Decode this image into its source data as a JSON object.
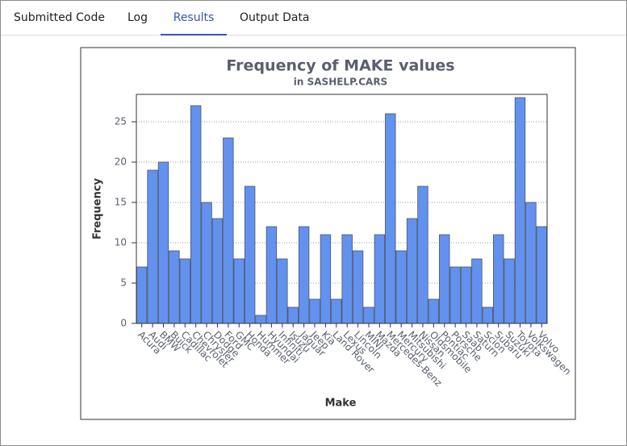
{
  "tabs": [
    "Submitted Code",
    "Log",
    "Results",
    "Output Data"
  ],
  "active_tab": 2,
  "chart_data": {
    "type": "bar",
    "title": "Frequency of MAKE values",
    "subtitle": "in SASHELP.CARS",
    "x_label": "Make",
    "y_label": "Frequency",
    "categories": [
      "Acura",
      "Audi",
      "BMW",
      "Buick",
      "Cadillac",
      "Chevrolet",
      "Chrysler",
      "Dodge",
      "Ford",
      "GMC",
      "Honda",
      "Hummer",
      "Hyundai",
      "Infiniti",
      "Isuzu",
      "Jaguar",
      "Jeep",
      "Kia",
      "Land Rover",
      "Lexus",
      "Lincoln",
      "MINI",
      "Mazda",
      "Mercedes-Benz",
      "Mercury",
      "Mitsubishi",
      "Nissan",
      "Oldsmobile",
      "Pontiac",
      "Porsche",
      "Saab",
      "Saturn",
      "Scion",
      "Subaru",
      "Suzuki",
      "Toyota",
      "Volkswagen",
      "Volvo"
    ],
    "values": [
      7,
      19,
      20,
      9,
      8,
      27,
      15,
      13,
      23,
      8,
      17,
      1,
      12,
      8,
      2,
      12,
      3,
      11,
      3,
      11,
      9,
      2,
      11,
      26,
      9,
      13,
      17,
      3,
      11,
      7,
      7,
      8,
      2,
      11,
      8,
      28,
      15,
      12
    ],
    "color": "#6391ee",
    "ylim": [
      0,
      28.4
    ],
    "yticks": [
      0,
      5,
      10,
      15,
      20,
      25
    ],
    "grid": true
  }
}
